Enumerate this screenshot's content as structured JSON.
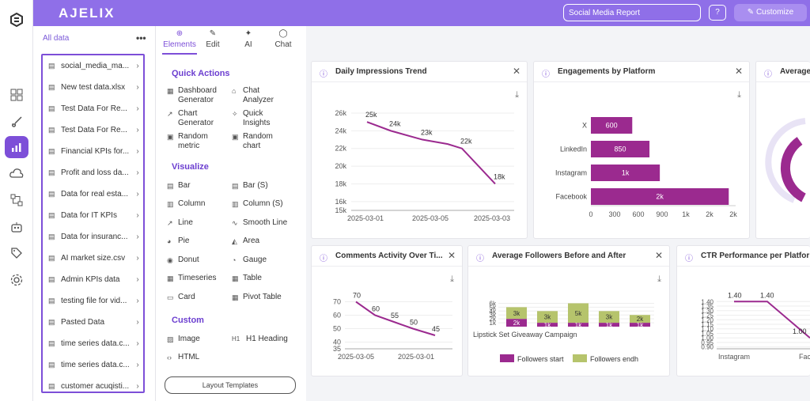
{
  "app": {
    "brand": "AJELIX",
    "report_title": "Social Media Report",
    "help": "?",
    "customize": "Customize"
  },
  "datapanel": {
    "all_data": "All data",
    "menu": "•••",
    "files": [
      "social_media_ma...",
      "New test data.xlsx",
      "Test Data For Re...",
      "Test Data For Re...",
      "Financial KPIs for...",
      "Profit and loss da...",
      "Data for real esta...",
      "Data for IT KPIs",
      "Data for insuranc...",
      "AI market size.csv",
      "Admin KPIs data",
      "testing file for vid...",
      "Pasted Data",
      "time series data.c...",
      "time series data.c...",
      "customer acuqisti..."
    ]
  },
  "tabs": [
    {
      "label": "Elements",
      "icon": "⊕"
    },
    {
      "label": "Edit",
      "icon": "✎"
    },
    {
      "label": "AI",
      "icon": "✦"
    },
    {
      "label": "Chat",
      "icon": "◯"
    }
  ],
  "sections": {
    "quick": "Quick Actions",
    "visualize": "Visualize",
    "custom": "Custom"
  },
  "quick_actions": {
    "dashboard_l1": "Dashboard",
    "dashboard_l2": "Generator",
    "chat_l1": "Chat",
    "chat_l2": "Analyzer",
    "chart_l1": "Chart",
    "chart_l2": "Generator",
    "insights_l1": "Quick",
    "insights_l2": "Insights",
    "rmetric_l1": "Random",
    "rmetric_l2": "metric",
    "rchart_l1": "Random",
    "rchart_l2": "chart"
  },
  "visualize": {
    "bar": "Bar",
    "bar_s": "Bar (S)",
    "column": "Column",
    "column_s": "Column (S)",
    "line": "Line",
    "smooth_line": "Smooth Line",
    "pie": "Pie",
    "area": "Area",
    "donut": "Donut",
    "gauge": "Gauge",
    "timeseries": "Timeseries",
    "table": "Table",
    "card": "Card",
    "pivot": "Pivot Table"
  },
  "custom": {
    "image": "Image",
    "h1": "H1 Heading",
    "html": "HTML",
    "h1_icon": "H1"
  },
  "layout_templates": "Layout Templates",
  "cards": {
    "impressions": {
      "title": "Daily Impressions Trend"
    },
    "engagements": {
      "title": "Engagements by Platform"
    },
    "average": {
      "title": "Average"
    },
    "comments": {
      "title": "Comments Activity Over Ti..."
    },
    "followers": {
      "title": "Average Followers Before and After"
    },
    "ctr": {
      "title": "CTR Performance per Platfor"
    }
  },
  "chart_data": [
    {
      "id": "impressions",
      "type": "line",
      "title": "Daily Impressions Trend",
      "x": [
        "2025-03-01",
        "2025-03-03",
        "2025-03-04",
        "2025-03-05",
        "2025-03-06",
        "2025-03-08"
      ],
      "values": [
        25,
        24,
        23,
        22.5,
        22,
        18
      ],
      "point_labels": [
        "25k",
        "24k",
        "23k",
        "",
        "22k",
        "18k"
      ],
      "xticks": [
        "2025-03-01",
        "2025-03-05",
        "2025-03-03"
      ],
      "yticks": [
        "26k",
        "24k",
        "22k",
        "20k",
        "18k",
        "16k",
        "15k"
      ],
      "ylim": [
        15,
        26
      ]
    },
    {
      "id": "engagements",
      "type": "bar",
      "title": "Engagements by Platform",
      "orientation": "horizontal",
      "categories": [
        "X",
        "LinkedIn",
        "Instagram",
        "Facebook"
      ],
      "values": [
        600,
        850,
        1000,
        2000
      ],
      "value_labels": [
        "600",
        "850",
        "1k",
        "2k"
      ],
      "xticks": [
        "0",
        "300",
        "600",
        "900",
        "1k",
        "2k",
        "2k"
      ],
      "xlim": [
        0,
        2100
      ]
    },
    {
      "id": "comments",
      "type": "line",
      "title": "Comments Activity Over Ti...",
      "x": [
        "2025-03-05",
        "2025-03-06",
        "2025-03-07",
        "2025-03-08",
        "2025-03-10"
      ],
      "values": [
        70,
        60,
        55,
        50,
        45
      ],
      "point_labels": [
        "70",
        "60",
        "55",
        "50",
        "45"
      ],
      "xticks": [
        "2025-03-05",
        "2025-03-01"
      ],
      "yticks": [
        "70",
        "60",
        "50",
        "40",
        "35"
      ],
      "ylim": [
        35,
        75
      ]
    },
    {
      "id": "followers",
      "type": "bar",
      "title": "Average Followers Before and After",
      "stacked": true,
      "categories": [
        "Lipstick Set Giveaway Campaign",
        "",
        "",
        "",
        ""
      ],
      "series": [
        {
          "name": "Followers start",
          "color": "#9b2a8f",
          "values": [
            2000,
            1000,
            1000,
            1000,
            1000
          ],
          "labels": [
            "2k",
            "1k",
            "1k",
            "1k",
            "1k"
          ]
        },
        {
          "name": "Followers endh",
          "color": "#b6c46c",
          "values": [
            3000,
            3000,
            5000,
            3000,
            2000
          ],
          "labels": [
            "3k",
            "3k",
            "5k",
            "3k",
            "2k"
          ]
        }
      ],
      "yticks": [
        "6k",
        "5k",
        "4k",
        "3k",
        "2k",
        "1k"
      ],
      "ylim": [
        0,
        6500
      ]
    },
    {
      "id": "ctr",
      "type": "line",
      "title": "CTR Performance per Platfor",
      "categories": [
        "Instagram",
        "",
        "Facebo"
      ],
      "values": [
        1.4,
        1.4,
        1.0
      ],
      "point_labels": [
        "1.40",
        "1.40",
        "1.00"
      ],
      "yticks": [
        "1.40",
        "1.35",
        "1.30",
        "1.25",
        "1.20",
        "1.15",
        "1.10",
        "1.05",
        "1.00",
        "0.95",
        "0.90"
      ],
      "ylim": [
        0.88,
        1.42
      ]
    }
  ],
  "colors": {
    "accent": "#7d4fd8",
    "topbar": "#8f6fe8",
    "series": "#9b2a8f",
    "secondary": "#b6c46c"
  }
}
